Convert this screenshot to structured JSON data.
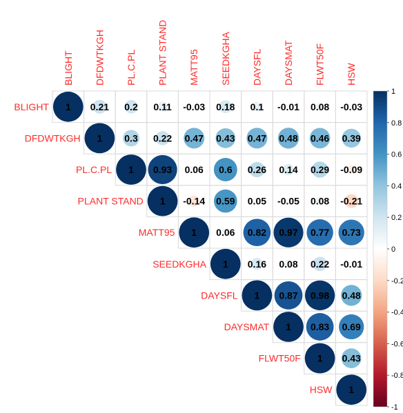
{
  "chart_data": {
    "type": "heatmap",
    "subtype": "upper-triangle correlation matrix (circles)",
    "variables": [
      "BLIGHT",
      "DFDWTKGH",
      "PL.C.PL",
      "PLANT STAND",
      "MATT95",
      "SEEDKGHA",
      "DAYSFL",
      "DAYSMAT",
      "FLWT50F",
      "HSW"
    ],
    "matrix": [
      [
        1,
        0.21,
        0.2,
        0.11,
        -0.03,
        0.18,
        0.1,
        -0.01,
        0.08,
        -0.03
      ],
      [
        null,
        1,
        0.3,
        0.22,
        0.47,
        0.43,
        0.47,
        0.48,
        0.46,
        0.39
      ],
      [
        null,
        null,
        1,
        0.93,
        0.06,
        0.6,
        0.26,
        0.14,
        0.29,
        -0.09
      ],
      [
        null,
        null,
        null,
        1,
        -0.14,
        0.59,
        0.05,
        -0.05,
        0.08,
        -0.21
      ],
      [
        null,
        null,
        null,
        null,
        1,
        0.06,
        0.82,
        0.97,
        0.77,
        0.73
      ],
      [
        null,
        null,
        null,
        null,
        null,
        1,
        0.16,
        0.08,
        0.22,
        -0.01
      ],
      [
        null,
        null,
        null,
        null,
        null,
        null,
        1,
        0.87,
        0.98,
        0.48
      ],
      [
        null,
        null,
        null,
        null,
        null,
        null,
        null,
        1,
        0.83,
        0.69
      ],
      [
        null,
        null,
        null,
        null,
        null,
        null,
        null,
        null,
        1,
        0.43
      ],
      [
        null,
        null,
        null,
        null,
        null,
        null,
        null,
        null,
        null,
        1
      ]
    ],
    "labels": [
      [
        "1",
        "0.21",
        "0.2",
        "0.11",
        "-0.03",
        "0.18",
        "0.1",
        "-0.01",
        "0.08",
        "-0.03"
      ],
      [
        null,
        "1",
        "0.3",
        "0.22",
        "0.47",
        "0.43",
        "0.47",
        "0.48",
        "0.46",
        "0.39"
      ],
      [
        null,
        null,
        "1",
        "0.93",
        "0.06",
        "0.6",
        "0.26",
        "0.14",
        "0.29",
        "-0.09"
      ],
      [
        null,
        null,
        null,
        "1",
        "-0.14",
        "0.59",
        "0.05",
        "-0.05",
        "0.08",
        "-0.21"
      ],
      [
        null,
        null,
        null,
        null,
        "1",
        "0.06",
        "0.82",
        "0.97",
        "0.77",
        "0.73"
      ],
      [
        null,
        null,
        null,
        null,
        null,
        "1",
        "0.16",
        "0.08",
        "0.22",
        "-0.01"
      ],
      [
        null,
        null,
        null,
        null,
        null,
        null,
        "1",
        "0.87",
        "0.98",
        "0.48"
      ],
      [
        null,
        null,
        null,
        null,
        null,
        null,
        null,
        "1",
        "0.83",
        "0.69"
      ],
      [
        null,
        null,
        null,
        null,
        null,
        null,
        null,
        null,
        "1",
        "0.43"
      ],
      [
        null,
        null,
        null,
        null,
        null,
        null,
        null,
        null,
        null,
        "1"
      ]
    ],
    "color_scale": {
      "range": [
        -1,
        1
      ],
      "ticks": [
        1,
        0.8,
        0.6,
        0.4,
        0.2,
        0,
        -0.2,
        -0.4,
        -0.6,
        -0.8,
        -1
      ],
      "tick_labels": [
        "1",
        "0.8",
        "0.6",
        "0.4",
        "0.2",
        "0",
        "-0.2",
        "-0.4",
        "-0.6",
        "-0.8",
        "-1"
      ],
      "stops": [
        "#67001F",
        "#B2182B",
        "#D6604D",
        "#F4A582",
        "#FDDBC7",
        "#FFFFFF",
        "#D1E5F0",
        "#92C5DE",
        "#4393C3",
        "#2166AC",
        "#053061"
      ]
    },
    "label_color": "#FF2A2A",
    "legend_position": "right",
    "grid": true
  }
}
